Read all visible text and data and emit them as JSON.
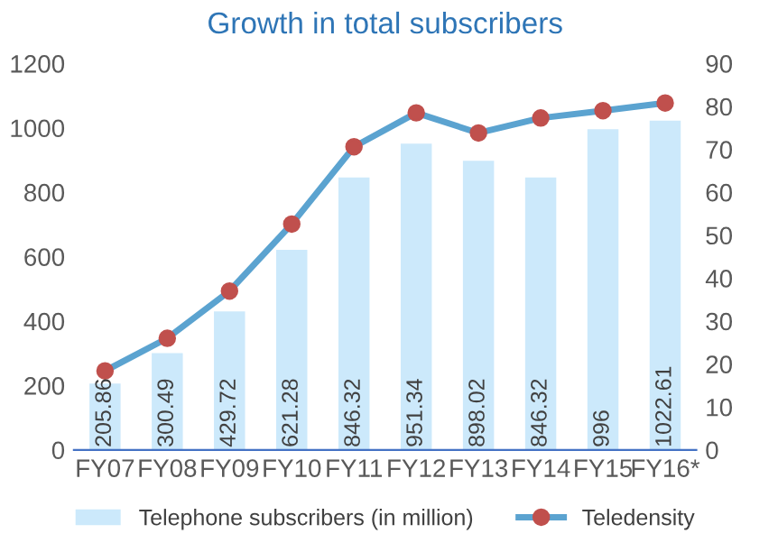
{
  "chart_data": {
    "type": "bar",
    "title": "Growth in total subscribers",
    "categories": [
      "FY07",
      "FY08",
      "FY09",
      "FY10",
      "FY11",
      "FY12",
      "FY13",
      "FY14",
      "FY15",
      "FY16*"
    ],
    "series": [
      {
        "name": "Telephone subscribers (in million)",
        "color": "#cce9fb",
        "values": [
          205.86,
          300.49,
          429.72,
          621.28,
          846.32,
          951.34,
          898.02,
          846.32,
          996,
          1022.61
        ],
        "value_labels": [
          "205.86",
          "300.49",
          "429.72",
          "621.28",
          "846.32",
          "951.34",
          "898.02",
          "846.32",
          "996",
          "1022.61"
        ]
      },
      {
        "name": "Teledensity",
        "type": "line",
        "axis": "y2",
        "color": "#5ba3d0",
        "marker": "circle",
        "values": [
          18.4,
          26.0,
          37.0,
          52.6,
          70.6,
          78.5,
          73.8,
          77.3,
          79.0,
          80.8
        ]
      }
    ],
    "ylim": [
      0,
      1200
    ],
    "yticks": [
      0,
      200,
      400,
      600,
      800,
      1000,
      1200
    ],
    "y2lim": [
      0,
      90
    ],
    "y2ticks": [
      0,
      10,
      20,
      30,
      40,
      50,
      60,
      70,
      80,
      90
    ],
    "grid": false,
    "legend": "bottom"
  }
}
